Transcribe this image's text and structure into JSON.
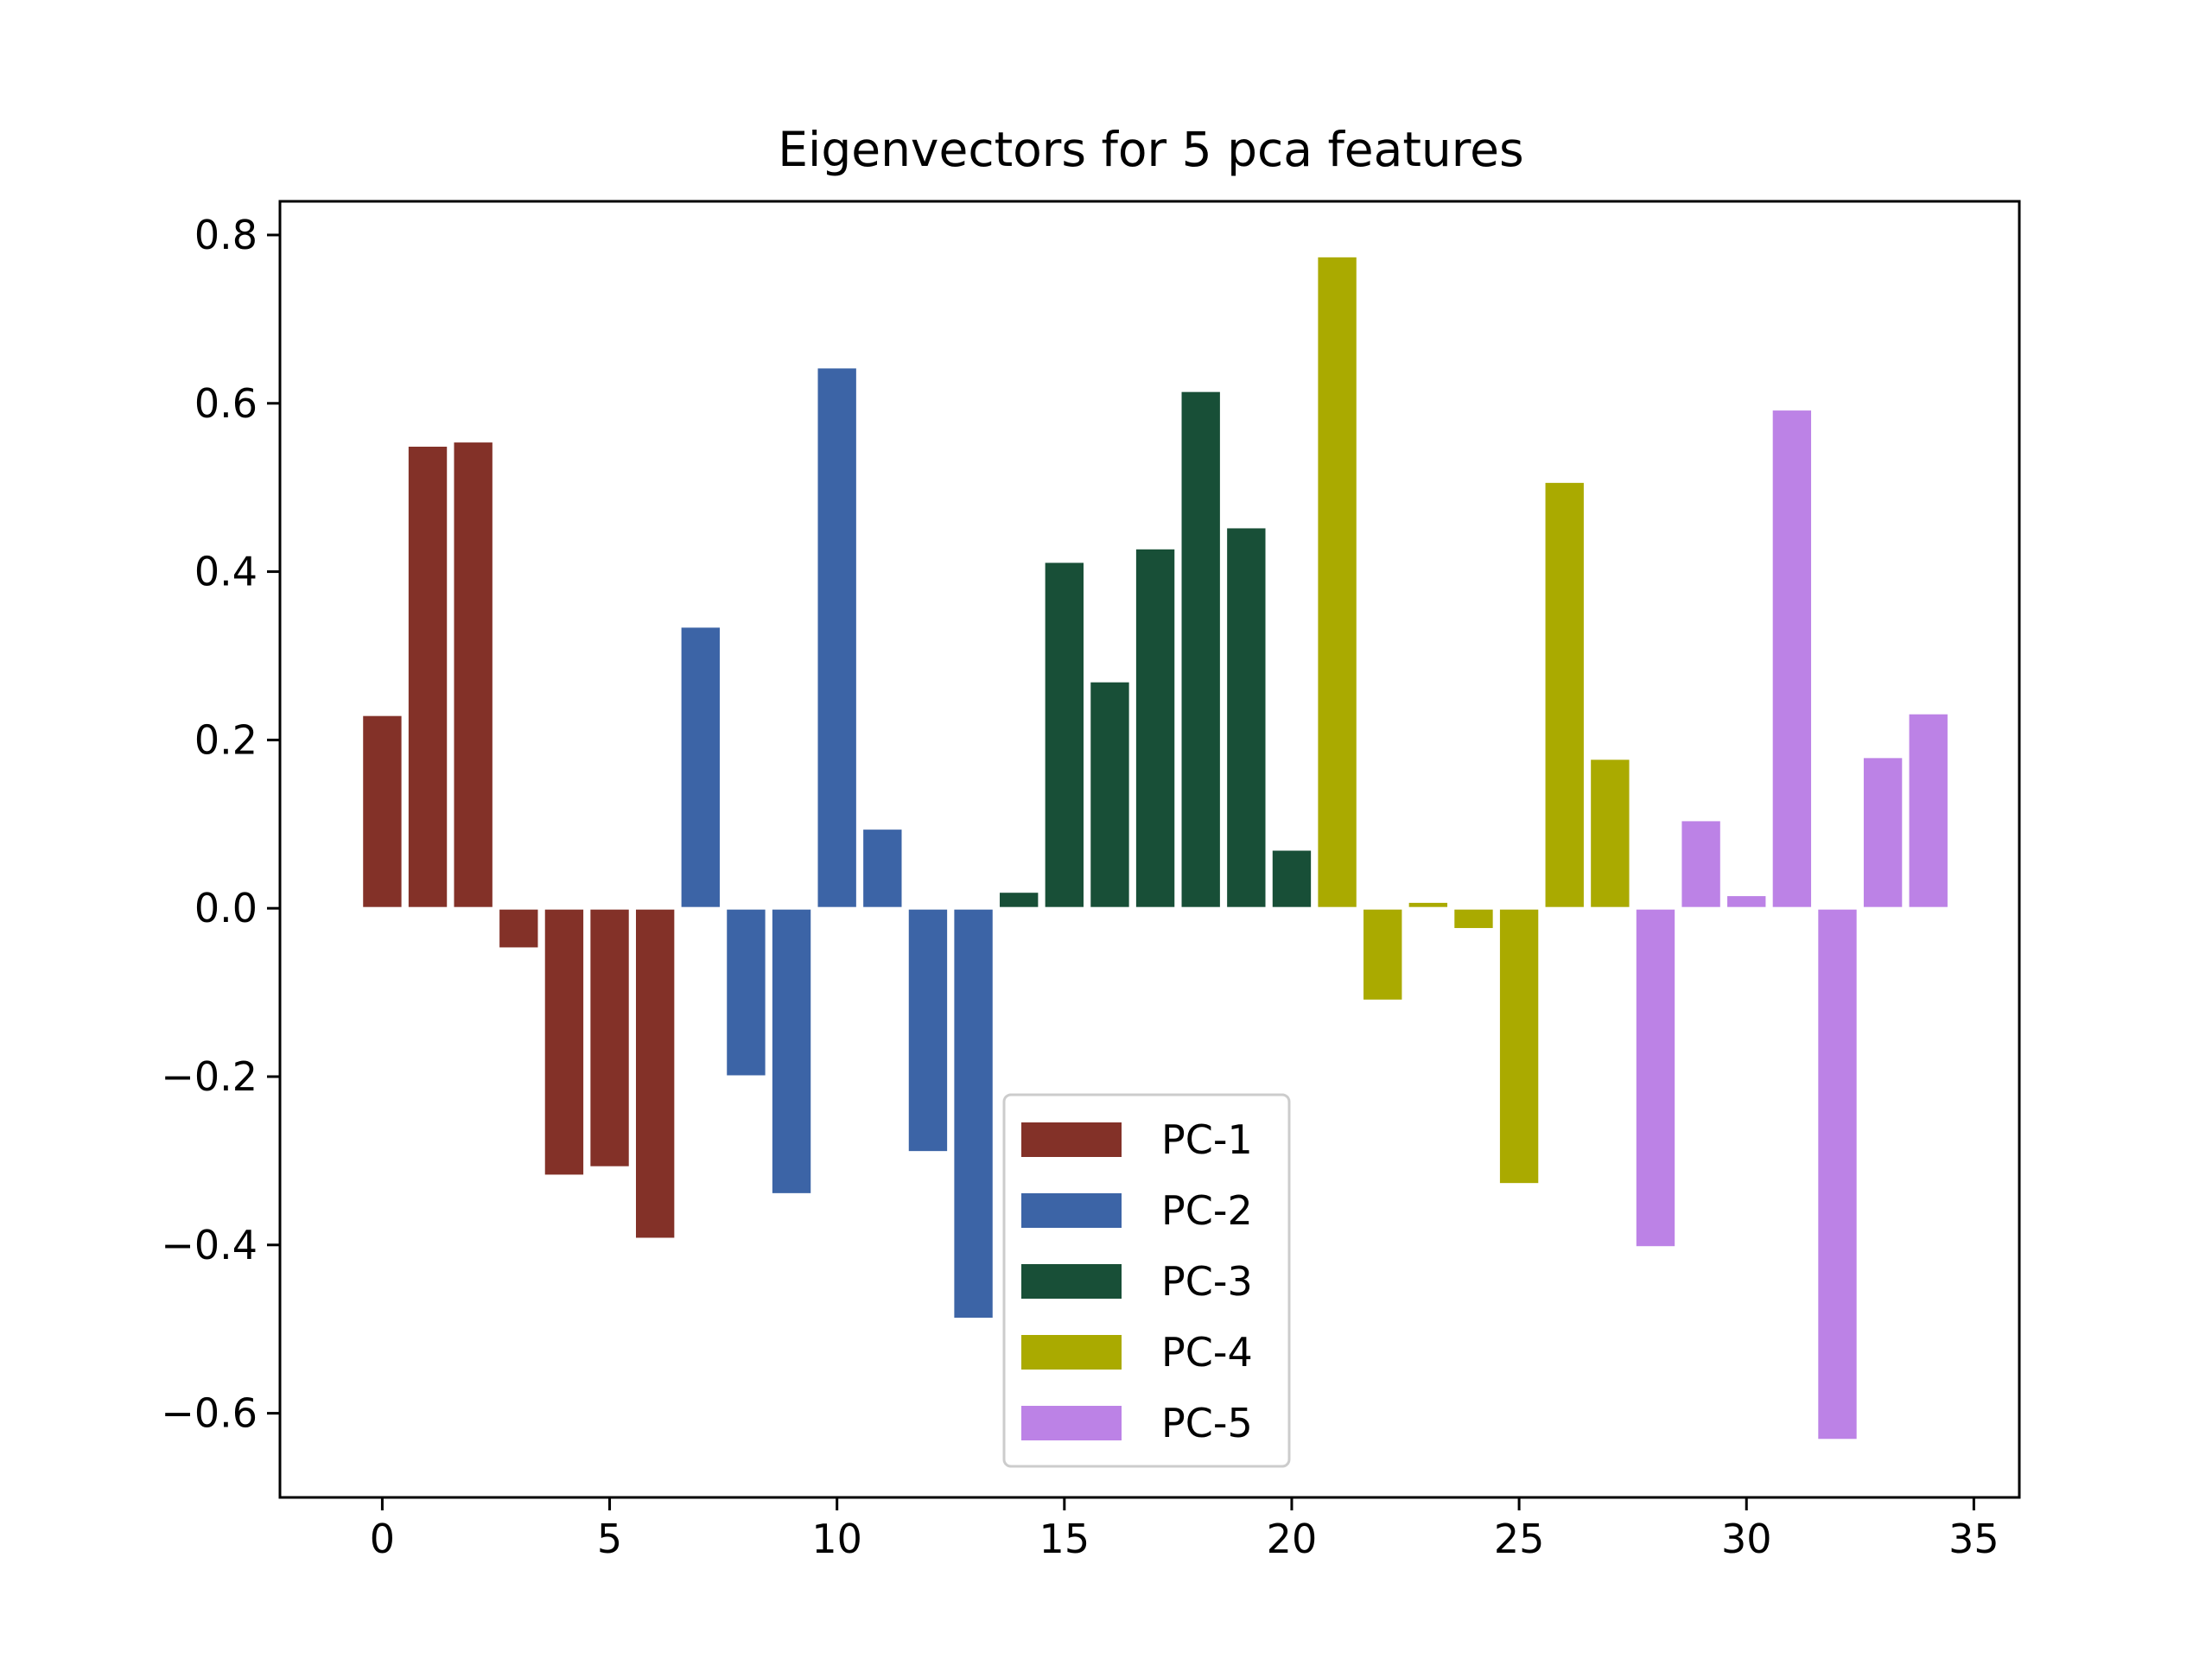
{
  "chart_data": {
    "type": "bar",
    "title": "Eigenvectors for 5 pca features",
    "xlabel": "",
    "ylabel": "",
    "xlim": [
      -2.25,
      36.0
    ],
    "ylim": [
      -0.7,
      0.84
    ],
    "xticks": [
      0,
      5,
      10,
      15,
      20,
      25,
      30,
      35
    ],
    "yticks": [
      -0.6,
      -0.4,
      -0.2,
      0.0,
      0.2,
      0.4,
      0.6,
      0.8
    ],
    "xtick_labels": [
      "0",
      "5",
      "10",
      "15",
      "20",
      "25",
      "30",
      "35"
    ],
    "ytick_labels": [
      "−0.6",
      "−0.4",
      "−0.2",
      "0.0",
      "0.2",
      "0.4",
      "0.6",
      "0.8"
    ],
    "grid": false,
    "legend_position": "lower-center",
    "bar_width": 0.9,
    "series": [
      {
        "name": "PC-1",
        "color": "#833128",
        "x": [
          0,
          1,
          2,
          3,
          4,
          5,
          6
        ],
        "values": [
          0.23,
          0.55,
          0.555,
          -0.048,
          -0.318,
          -0.308,
          -0.393
        ]
      },
      {
        "name": "PC-2",
        "color": "#3c64a6",
        "x": [
          7,
          8,
          9,
          10,
          11,
          12,
          13
        ],
        "values": [
          0.335,
          -0.2,
          -0.34,
          0.643,
          0.095,
          -0.29,
          -0.488
        ]
      },
      {
        "name": "PC-3",
        "color": "#184f37",
        "x": [
          14,
          15,
          16,
          17,
          18,
          19,
          20
        ],
        "values": [
          0.02,
          0.412,
          0.27,
          0.428,
          0.615,
          0.453,
          0.07
        ]
      },
      {
        "name": "PC-4",
        "color": "#aaaa00",
        "x": [
          21,
          22,
          23,
          24,
          25,
          26,
          27
        ],
        "values": [
          0.775,
          -0.11,
          0.008,
          -0.025,
          -0.328,
          0.507,
          0.178
        ]
      },
      {
        "name": "PC-5",
        "color": "#bc82e6",
        "x": [
          28,
          29,
          30,
          31,
          32,
          33,
          34
        ],
        "values": [
          -0.403,
          0.105,
          0.016,
          0.593,
          -0.632,
          0.18,
          0.232
        ]
      }
    ]
  }
}
